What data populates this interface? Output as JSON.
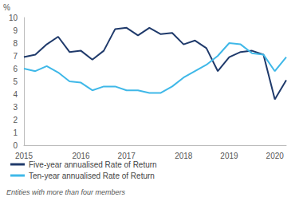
{
  "chart_data": {
    "type": "line",
    "y_label": "%",
    "note": "Entities with more than four members",
    "categories": [
      "2015",
      null,
      null,
      null,
      null,
      "2016",
      null,
      null,
      null,
      "2017",
      null,
      null,
      null,
      null,
      "2018",
      null,
      null,
      null,
      "2019",
      null,
      null,
      null,
      "2020",
      null
    ],
    "series": [
      {
        "name": "Five-year annualised Rate of Return",
        "color": "#1f3a6b",
        "values": [
          6.9,
          7.1,
          7.9,
          8.5,
          7.3,
          7.4,
          6.7,
          7.4,
          9.1,
          9.2,
          8.6,
          9.2,
          8.7,
          8.8,
          7.9,
          8.2,
          7.6,
          5.8,
          6.9,
          7.3,
          7.4,
          7.1,
          3.6,
          5.1
        ]
      },
      {
        "name": "Ten-year annualised Rate of Return",
        "color": "#3fb8e8",
        "values": [
          6.0,
          5.8,
          6.2,
          5.7,
          5.0,
          4.9,
          4.3,
          4.6,
          4.6,
          4.3,
          4.3,
          4.1,
          4.1,
          4.6,
          5.3,
          5.8,
          6.3,
          7.0,
          8.0,
          7.9,
          7.2,
          7.1,
          5.8,
          6.9
        ]
      }
    ],
    "ylim": [
      0,
      10
    ],
    "yticks": [
      0,
      1,
      2,
      3,
      4,
      5,
      6,
      7,
      8,
      9,
      10
    ],
    "grid": false,
    "legend": "bottom"
  }
}
